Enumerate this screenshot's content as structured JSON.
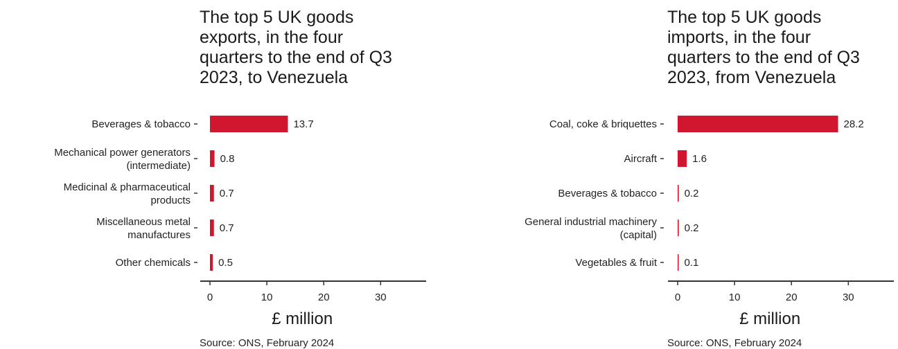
{
  "chart_data": [
    {
      "type": "bar",
      "orientation": "horizontal",
      "title": "The top 5 UK goods exports, in the four quarters to the end of Q3 2023, to Venezuela",
      "categories": [
        "Beverages & tobacco",
        "Mechanical power generators (intermediate)",
        "Medicinal & pharmaceutical products",
        "Miscellaneous metal manufactures",
        "Other chemicals"
      ],
      "values": [
        13.7,
        0.8,
        0.7,
        0.7,
        0.5
      ],
      "value_labels": [
        "13.7",
        "0.8",
        "0.7",
        "0.7",
        "0.5"
      ],
      "xlabel": "£ million",
      "xticks": [
        "0",
        "10",
        "20",
        "30"
      ],
      "xlim": [
        0,
        38
      ],
      "grid": false,
      "legend": "none",
      "bar_color": "#d0172f",
      "source": "Source: ONS, February 2024"
    },
    {
      "type": "bar",
      "orientation": "horizontal",
      "title": "The top 5 UK goods imports, in the four quarters to the end of Q3 2023, from Venezuela",
      "categories": [
        "Coal, coke & briquettes",
        "Aircraft",
        "Beverages & tobacco",
        "General industrial machinery (capital)",
        "Vegetables & fruit"
      ],
      "values": [
        28.2,
        1.6,
        0.2,
        0.2,
        0.1
      ],
      "value_labels": [
        "28.2",
        "1.6",
        "0.2",
        "0.2",
        "0.1"
      ],
      "xlabel": "£ million",
      "xticks": [
        "0",
        "10",
        "20",
        "30"
      ],
      "xlim": [
        0,
        38
      ],
      "grid": false,
      "legend": "none",
      "bar_color": "#d0172f",
      "source": "Source: ONS, February 2024"
    }
  ]
}
